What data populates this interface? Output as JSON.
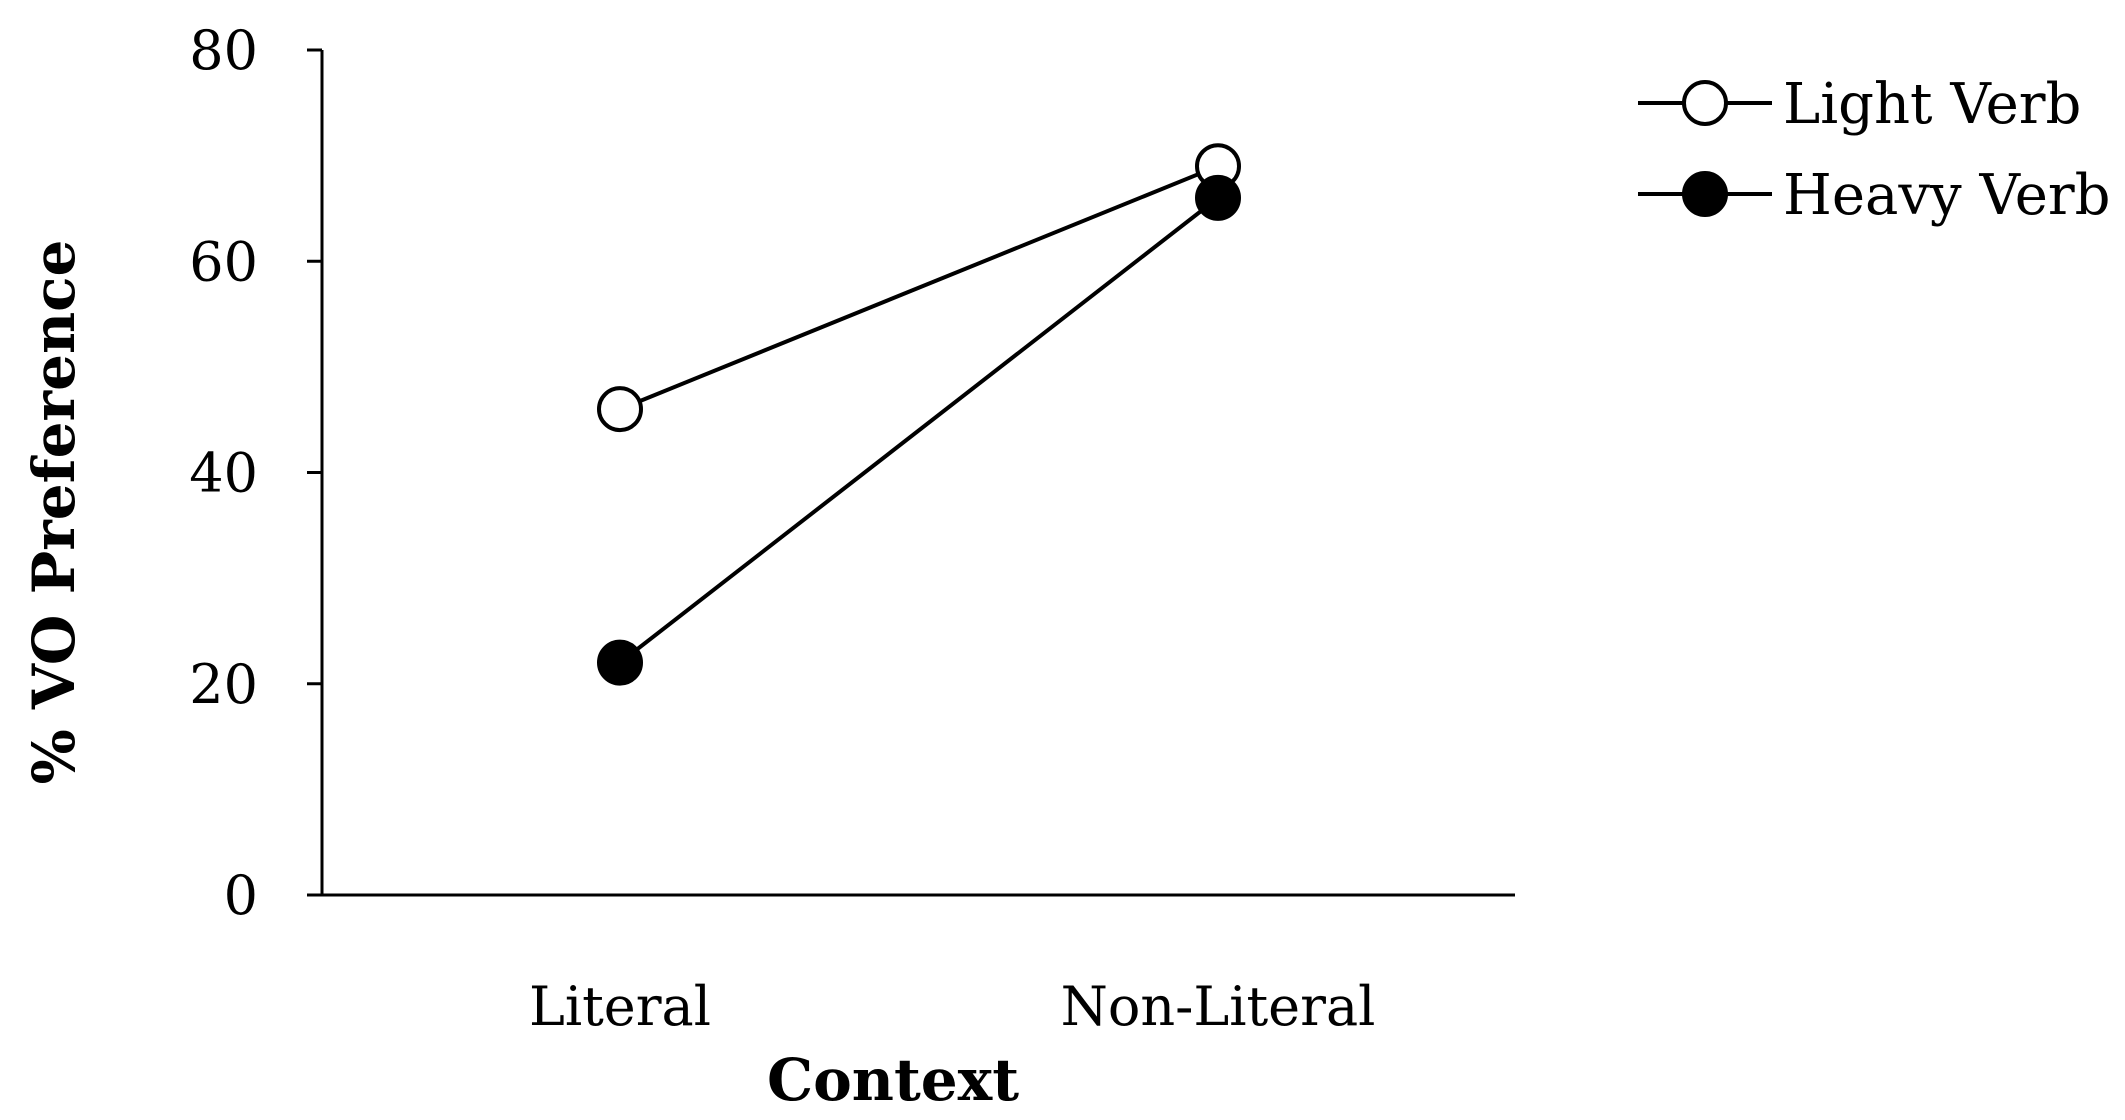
{
  "chart_data": {
    "type": "line",
    "title": "",
    "xlabel": "Context",
    "ylabel": "% VO Preference",
    "categories": [
      "Literal",
      "Non-Literal"
    ],
    "ylim": [
      0,
      80
    ],
    "yticks": [
      "0",
      "20",
      "40",
      "60",
      "80"
    ],
    "grid": false,
    "legend_position": "top-right",
    "series": [
      {
        "name": "Light Verb",
        "marker": "open-circle",
        "color": "#000000",
        "values": [
          46,
          69
        ]
      },
      {
        "name": "Heavy Verb",
        "marker": "filled-circle",
        "color": "#000000",
        "values": [
          22,
          66
        ]
      }
    ]
  }
}
